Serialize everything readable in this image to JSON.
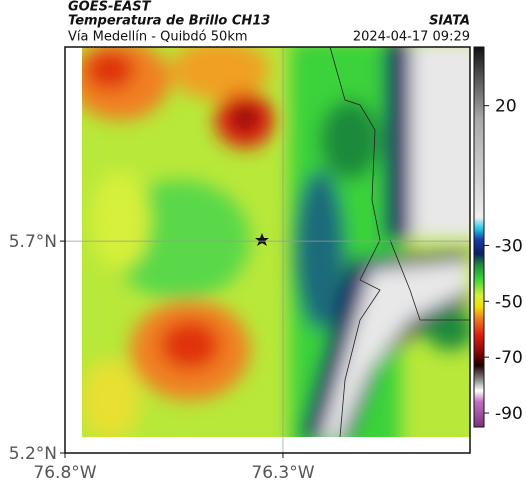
{
  "header": {
    "source": "GOES-EAST",
    "product": "Temperatura de Brillo CH13",
    "region": "Vía Medellín - Quibdó 50km",
    "agency": "SIATA",
    "timestamp": "2024-04-17 09:29"
  },
  "map": {
    "lat_lim": [
      5.2,
      6.158
    ],
    "lon_lim": [
      -76.8,
      -75.871
    ],
    "lat_ticks": [
      {
        "value": 5.7,
        "label": "5.7°N"
      },
      {
        "value": 5.2,
        "label": "5.2°N"
      }
    ],
    "lon_ticks": [
      {
        "value": -76.8,
        "label": "76.8°W"
      },
      {
        "value": -76.3,
        "label": "76.3°W"
      }
    ]
  },
  "colorbar": {
    "lim": [
      41,
      -95
    ],
    "ticks": [
      20,
      -30,
      -50,
      -70,
      -90
    ],
    "stops": [
      {
        "value": 41,
        "color": "#111111"
      },
      {
        "value": 30,
        "color": "#555555"
      },
      {
        "value": 15,
        "color": "#aaaaaa"
      },
      {
        "value": -20,
        "color": "#eeeeee"
      },
      {
        "value": -24,
        "color": "#22c8e8"
      },
      {
        "value": -28,
        "color": "#1a3aa8"
      },
      {
        "value": -33,
        "color": "#0a2060"
      },
      {
        "value": -37,
        "color": "#1f8a3a"
      },
      {
        "value": -42,
        "color": "#3ad23a"
      },
      {
        "value": -48,
        "color": "#d6f03a"
      },
      {
        "value": -52,
        "color": "#f0e000"
      },
      {
        "value": -56,
        "color": "#f08020"
      },
      {
        "value": -62,
        "color": "#e02010"
      },
      {
        "value": -68,
        "color": "#8a0808"
      },
      {
        "value": -73,
        "color": "#200000"
      },
      {
        "value": -78,
        "color": "#888888"
      },
      {
        "value": -82,
        "color": "#ffffff"
      },
      {
        "value": -86,
        "color": "#c070c0"
      },
      {
        "value": -95,
        "color": "#803080"
      }
    ]
  }
}
